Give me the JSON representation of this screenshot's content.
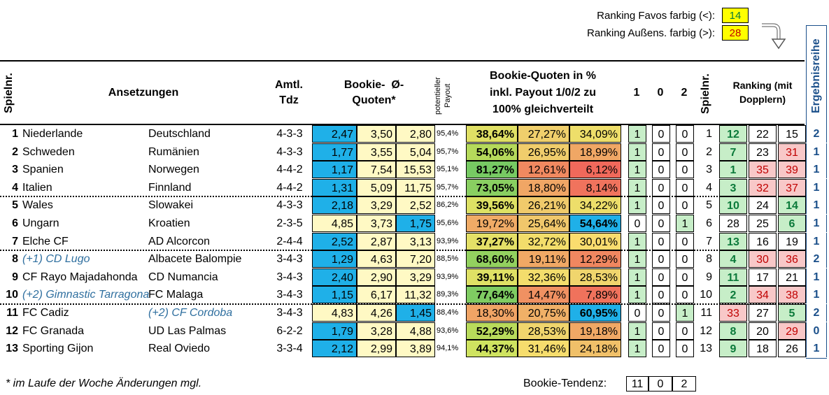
{
  "ranking": {
    "favos_label": "Ranking Favos farbig (<):",
    "favos_value": "14",
    "aussen_label": "Ranking Außens. farbig (>):",
    "aussen_value": "28"
  },
  "headers": {
    "spielnr": "Spielnr.",
    "ansetzungen": "Ansetzungen",
    "amtl_1": "Amtl.",
    "amtl_2": "Tdz",
    "bookie_1": "Bookie-  Ø-",
    "bookie_2": "Quoten*",
    "payout_1": "potentieller",
    "payout_2": "Payout",
    "pct_1": "Bookie-Quoten in %",
    "pct_2": "inkl. Payout 1/0/2 zu",
    "pct_3": "100% gleichverteilt",
    "h1": "1",
    "h0": "0",
    "h2": "2",
    "spielnr2": "Spielnr.",
    "rank_1": "Ranking (mit",
    "rank_2": "Dopplern)",
    "ergebnis": "Ergebnisreihe"
  },
  "colors": {
    "yellow": "#fff9c4",
    "blue": "#1fb0e8",
    "green_light": "#c7eec8",
    "pink": "#f8c8c8",
    "teal_bold": "#0b7a3a",
    "red_text": "#c00000",
    "link_text": "#2f6f9f",
    "box_yellow": "#ffff00"
  },
  "rows": [
    {
      "nr": "1",
      "home": "Niederlande",
      "away": "Deutschland",
      "tdz": "4-3-3",
      "q1": "2,47",
      "q0": "3,50",
      "q2": "2,80",
      "payout": "95,4%",
      "p1": "38,64%",
      "p0": "27,27%",
      "p2": "34,09%",
      "r1": "1",
      "r0": "0",
      "r2": "0",
      "nr2": "1",
      "k1": "12",
      "k0": "22",
      "k2": "15",
      "erg": "2"
    },
    {
      "nr": "2",
      "home": "Schweden",
      "away": "Rumänien",
      "tdz": "4-3-3",
      "q1": "1,77",
      "q0": "3,55",
      "q2": "5,04",
      "payout": "95,7%",
      "p1": "54,06%",
      "p0": "26,95%",
      "p2": "18,99%",
      "r1": "1",
      "r0": "0",
      "r2": "0",
      "nr2": "2",
      "k1": "7",
      "k0": "23",
      "k2": "31",
      "erg": "1"
    },
    {
      "nr": "3",
      "home": "Spanien",
      "away": "Norwegen",
      "tdz": "4-4-2",
      "q1": "1,17",
      "q0": "7,54",
      "q2": "15,53",
      "payout": "95,1%",
      "p1": "81,27%",
      "p0": "12,61%",
      "p2": "6,12%",
      "r1": "1",
      "r0": "0",
      "r2": "0",
      "nr2": "3",
      "k1": "1",
      "k0": "35",
      "k2": "39",
      "erg": "1"
    },
    {
      "nr": "4",
      "home": "Italien",
      "away": "Finnland",
      "tdz": "4-4-2",
      "q1": "1,31",
      "q0": "5,09",
      "q2": "11,75",
      "payout": "95,7%",
      "p1": "73,05%",
      "p0": "18,80%",
      "p2": "8,14%",
      "r1": "1",
      "r0": "0",
      "r2": "0",
      "nr2": "4",
      "k1": "3",
      "k0": "32",
      "k2": "37",
      "erg": "1"
    },
    {
      "nr": "5",
      "home": "Wales",
      "away": "Slowakei",
      "tdz": "4-3-3",
      "q1": "2,18",
      "q0": "3,29",
      "q2": "2,52",
      "payout": "86,2%",
      "p1": "39,56%",
      "p0": "26,21%",
      "p2": "34,22%",
      "r1": "1",
      "r0": "0",
      "r2": "0",
      "nr2": "5",
      "k1": "10",
      "k0": "24",
      "k2": "14",
      "erg": "1"
    },
    {
      "nr": "6",
      "home": "Ungarn",
      "away": "Kroatien",
      "tdz": "2-3-5",
      "q1": "4,85",
      "q0": "3,73",
      "q2": "1,75",
      "payout": "95,6%",
      "p1": "19,72%",
      "p0": "25,64%",
      "p2": "54,64%",
      "r1": "0",
      "r0": "0",
      "r2": "1",
      "nr2": "6",
      "k1": "28",
      "k0": "25",
      "k2": "6",
      "erg": "1"
    },
    {
      "nr": "7",
      "home": "Elche CF",
      "away": "AD Alcorcon",
      "tdz": "2-4-4",
      "q1": "2,52",
      "q0": "2,87",
      "q2": "3,13",
      "payout": "93,9%",
      "p1": "37,27%",
      "p0": "32,72%",
      "p2": "30,01%",
      "r1": "1",
      "r0": "0",
      "r2": "0",
      "nr2": "7",
      "k1": "13",
      "k0": "16",
      "k2": "19",
      "erg": "1"
    },
    {
      "nr": "8",
      "home": "(+1) CD Lugo",
      "away": "Albacete Balompie",
      "tdz": "3-4-3",
      "q1": "1,29",
      "q0": "4,63",
      "q2": "7,20",
      "payout": "88,5%",
      "p1": "68,60%",
      "p0": "19,11%",
      "p2": "12,29%",
      "r1": "1",
      "r0": "0",
      "r2": "0",
      "nr2": "8",
      "k1": "4",
      "k0": "30",
      "k2": "36",
      "erg": "2"
    },
    {
      "nr": "9",
      "home": "CF Rayo Majadahonda",
      "away": "CD Numancia",
      "tdz": "3-4-3",
      "q1": "2,40",
      "q0": "2,90",
      "q2": "3,29",
      "payout": "93,9%",
      "p1": "39,11%",
      "p0": "32,36%",
      "p2": "28,53%",
      "r1": "1",
      "r0": "0",
      "r2": "0",
      "nr2": "9",
      "k1": "11",
      "k0": "17",
      "k2": "21",
      "erg": "1"
    },
    {
      "nr": "10",
      "home": "(+2) Gimnastic Tarragona",
      "away": "FC Malaga",
      "tdz": "3-4-3",
      "q1": "1,15",
      "q0": "6,17",
      "q2": "11,32",
      "payout": "89,3%",
      "p1": "77,64%",
      "p0": "14,47%",
      "p2": "7,89%",
      "r1": "1",
      "r0": "0",
      "r2": "0",
      "nr2": "10",
      "k1": "2",
      "k0": "34",
      "k2": "38",
      "erg": "1"
    },
    {
      "nr": "11",
      "home": "FC Cadiz",
      "away": "(+2) CF Cordoba",
      "tdz": "3-4-3",
      "q1": "4,83",
      "q0": "4,26",
      "q2": "1,45",
      "payout": "88,4%",
      "p1": "18,30%",
      "p0": "20,75%",
      "p2": "60,95%",
      "r1": "0",
      "r0": "0",
      "r2": "1",
      "nr2": "11",
      "k1": "33",
      "k0": "27",
      "k2": "5",
      "erg": "2"
    },
    {
      "nr": "12",
      "home": "FC Granada",
      "away": "UD Las Palmas",
      "tdz": "6-2-2",
      "q1": "1,79",
      "q0": "3,28",
      "q2": "4,88",
      "payout": "93,6%",
      "p1": "52,29%",
      "p0": "28,53%",
      "p2": "19,18%",
      "r1": "1",
      "r0": "0",
      "r2": "0",
      "nr2": "12",
      "k1": "8",
      "k0": "20",
      "k2": "29",
      "erg": "0"
    },
    {
      "nr": "13",
      "home": "Sporting Gijon",
      "away": "Real Oviedo",
      "tdz": "3-3-4",
      "q1": "2,12",
      "q0": "2,99",
      "q2": "3,89",
      "payout": "94,1%",
      "p1": "44,37%",
      "p0": "31,46%",
      "p2": "24,18%",
      "r1": "1",
      "r0": "0",
      "r2": "0",
      "nr2": "13",
      "k1": "9",
      "k0": "18",
      "k2": "26",
      "erg": "1"
    }
  ],
  "footer": {
    "note": "* im Laufe der Woche Änderungen mgl.",
    "tendenz_label": "Bookie-Tendenz:",
    "t1": "11",
    "t0": "0",
    "t2": "2"
  }
}
